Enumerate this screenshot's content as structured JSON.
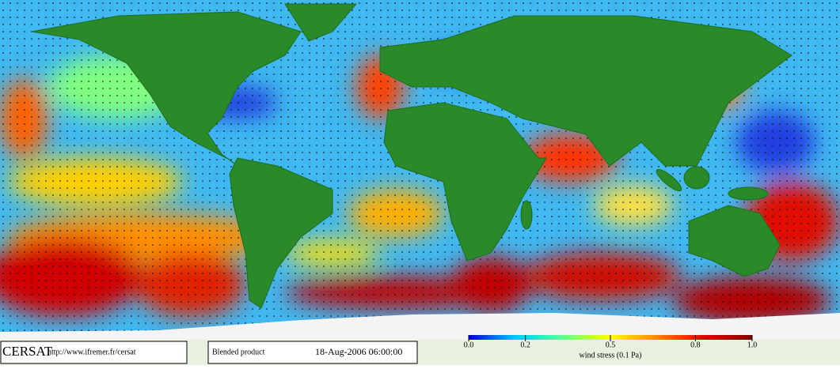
{
  "logo": "CERSAT",
  "url": "http://www.ifremer.fr/cersat",
  "product": "Blended product",
  "timestamp": "18-Aug-2006 06:00:00",
  "colorbar": {
    "label": "wind stress (0.1 Pa)",
    "range": [
      0,
      1
    ],
    "colors": [
      "#0000c8",
      "#00c8ff",
      "#60ff90",
      "#ffff00",
      "#ff8000",
      "#e00000",
      "#780000"
    ],
    "ticks": [
      {
        "value": 0,
        "label": "0.0"
      },
      0.2,
      0.5,
      0.8,
      {
        "value": 1,
        "label": "1.0"
      }
    ]
  }
}
